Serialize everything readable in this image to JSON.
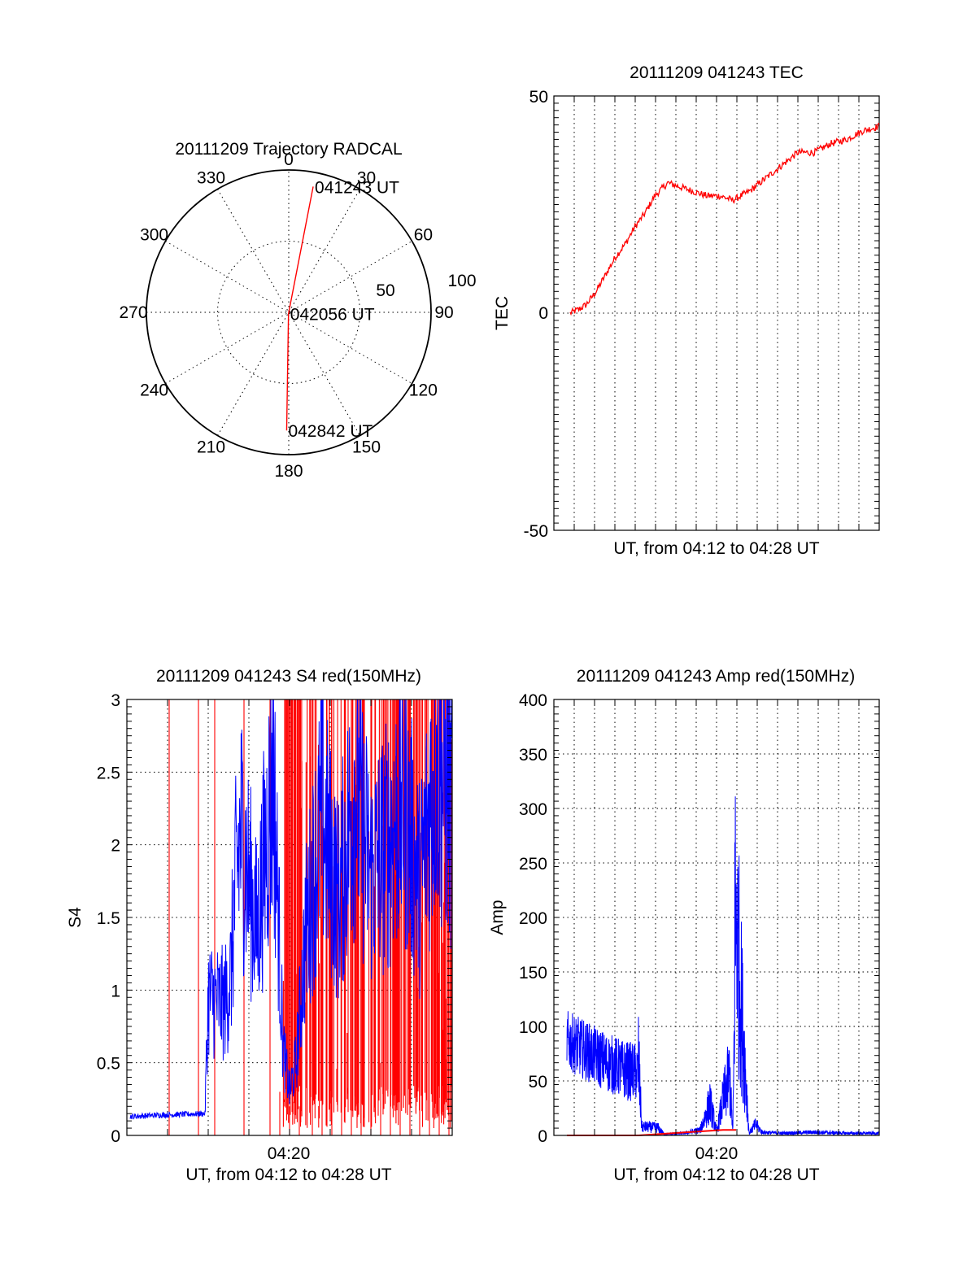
{
  "chart_data": [
    {
      "type": "polar-trajectory",
      "title": "20111209 Trajectory RADCAL",
      "azimuth_labels": [
        "0",
        "30",
        "60",
        "90",
        "120",
        "150",
        "180",
        "210",
        "240",
        "270",
        "300",
        "330"
      ],
      "radius_labels": [
        "50",
        "100"
      ],
      "radius_max": 100,
      "color": "#ff0000",
      "points": [
        {
          "label": "041243 UT",
          "az": 11,
          "r": 90
        },
        {
          "label": "042056 UT",
          "az": 190,
          "r": 1
        },
        {
          "label": "042842 UT",
          "az": 181,
          "r": 83
        }
      ]
    },
    {
      "type": "line",
      "title": "20111209 041243 TEC",
      "xlabel": "UT, from 04:12 to 04:28 UT",
      "ylabel": "TEC",
      "xlim": [
        "04:12",
        "04:28"
      ],
      "ylim": [
        -50,
        50
      ],
      "yticks": [
        "50",
        "0",
        "-50"
      ],
      "grid": true,
      "series": [
        {
          "color": "#ff0000",
          "x": [
            0.05,
            0.08,
            0.1,
            0.13,
            0.16,
            0.19,
            0.22,
            0.25,
            0.28,
            0.31,
            0.35,
            0.39,
            0.43,
            0.47,
            0.51,
            0.55,
            0.6,
            0.65,
            0.7,
            0.75,
            0.8,
            0.85,
            0.9,
            0.95,
            1.0
          ],
          "values": [
            0,
            1,
            2,
            5,
            9,
            13,
            16,
            20,
            23,
            27,
            30,
            29,
            28,
            27,
            27,
            26,
            28,
            31,
            34,
            37,
            37,
            39,
            40,
            42,
            43
          ]
        }
      ]
    },
    {
      "type": "line",
      "title": "20111209 041243 S4 red(150MHz)",
      "xlabel": "UT, from 04:12 to 04:28 UT",
      "ylabel": "S4",
      "xticks": [
        "04:20"
      ],
      "yticks": [
        "0",
        "0.5",
        "1",
        "1.5",
        "2",
        "2.5",
        "3"
      ],
      "ylim": [
        0,
        3
      ],
      "grid": true,
      "series": [
        {
          "color": "#0000ff",
          "x": [
            0.01,
            0.1,
            0.24,
            0.25,
            0.3,
            0.32,
            0.33,
            0.35,
            0.4,
            0.45,
            0.48,
            0.5,
            0.52,
            0.55,
            0.6,
            0.65,
            0.7,
            0.75,
            0.8,
            0.85,
            0.9,
            0.95,
            1.0
          ],
          "values": [
            0.13,
            0.14,
            0.15,
            0.95,
            0.9,
            1.1,
            1.6,
            2.1,
            1.4,
            2.5,
            0.6,
            0.3,
            0.5,
            1.4,
            2.2,
            1.6,
            2.4,
            1.8,
            2.0,
            2.3,
            1.7,
            2.6,
            2.2
          ]
        },
        {
          "color": "#ff0000",
          "x": [
            0.13,
            0.22,
            0.27,
            0.36,
            0.44,
            0.47,
            0.5,
            0.53,
            0.57,
            0.6,
            0.63,
            0.66,
            0.69,
            0.72,
            0.75,
            0.78,
            0.81,
            0.84,
            0.87,
            0.9,
            0.93,
            0.96,
            0.99
          ],
          "values": [
            3,
            3,
            3,
            3,
            3,
            0.3,
            0.2,
            0.2,
            3,
            1.5,
            3,
            2,
            3,
            1.2,
            3,
            0.5,
            3,
            2.8,
            1.1,
            3,
            2.4,
            3,
            1.6
          ]
        }
      ]
    },
    {
      "type": "line",
      "title": "20111209 041243 Amp red(150MHz)",
      "xlabel": "UT, from 04:12 to 04:28 UT",
      "ylabel": "Amp",
      "xticks": [
        "04:20"
      ],
      "yticks": [
        "0",
        "50",
        "100",
        "150",
        "200",
        "250",
        "300",
        "350",
        "400"
      ],
      "ylim": [
        0,
        400
      ],
      "grid": true,
      "series": [
        {
          "color": "#0000ff",
          "x": [
            0.04,
            0.1,
            0.16,
            0.22,
            0.26,
            0.27,
            0.32,
            0.34,
            0.4,
            0.45,
            0.48,
            0.5,
            0.52,
            0.54,
            0.55,
            0.56,
            0.6,
            0.62,
            0.64,
            0.7,
            0.8,
            0.9,
            1.0
          ],
          "values": [
            100,
            90,
            80,
            72,
            70,
            8,
            7,
            1,
            2,
            5,
            30,
            4,
            50,
            85,
            3,
            200,
            2,
            10,
            3,
            2,
            3,
            2,
            2
          ]
        },
        {
          "color": "#ff0000",
          "x": [
            0.04,
            0.26,
            0.52,
            0.56
          ],
          "values": [
            0,
            0,
            5,
            5
          ]
        }
      ]
    }
  ]
}
